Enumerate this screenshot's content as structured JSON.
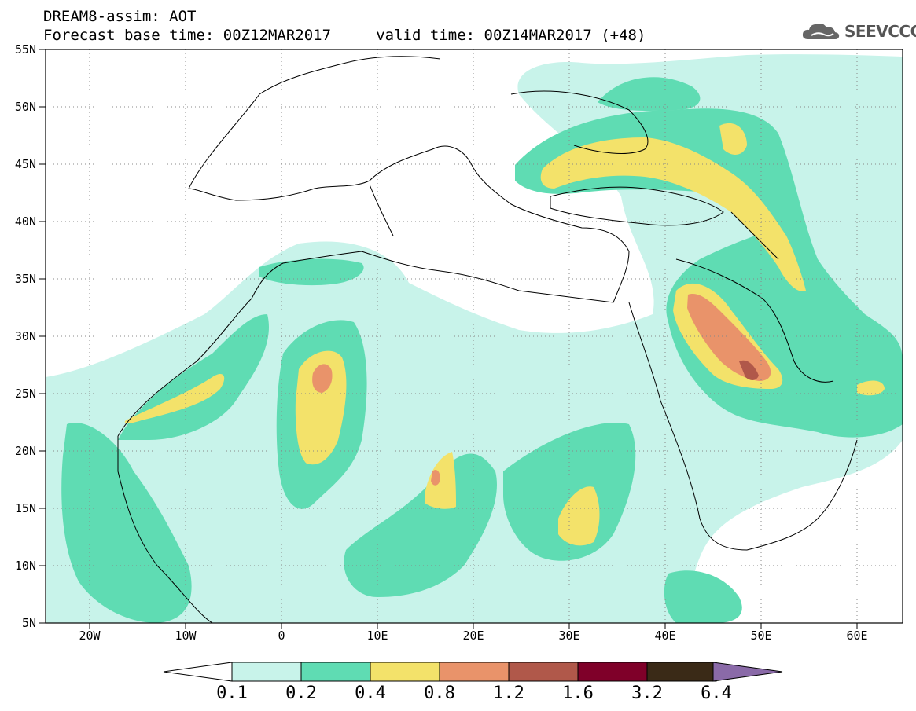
{
  "header": {
    "title": "DREAM8-assim: AOT",
    "subtitle": "Forecast base time: 00Z12MAR2017     valid time: 00Z14MAR2017 (+48)",
    "logo_text": "SEEVCCC"
  },
  "map": {
    "projection": "cylindrical",
    "lon_range": [
      -25,
      65
    ],
    "lat_range": [
      5,
      55
    ],
    "lat_labels": [
      "55N",
      "50N",
      "45N",
      "40N",
      "35N",
      "30N",
      "25N",
      "20N",
      "15N",
      "10N",
      "5N"
    ],
    "lon_labels": [
      "20W",
      "10W",
      "0",
      "10E",
      "20E",
      "30E",
      "40E",
      "50E",
      "60E"
    ],
    "field": "Aerosol optical thickness"
  },
  "legend": {
    "ticks": [
      "0.1",
      "0.2",
      "0.4",
      "0.8",
      "1.2",
      "1.6",
      "3.2",
      "6.4"
    ],
    "colors": [
      "#c8f3ea",
      "#5fdcb3",
      "#f3e26a",
      "#e9936a",
      "#b0584a",
      "#7f0029",
      "#3a2a17",
      "#8a6aa8"
    ]
  }
}
